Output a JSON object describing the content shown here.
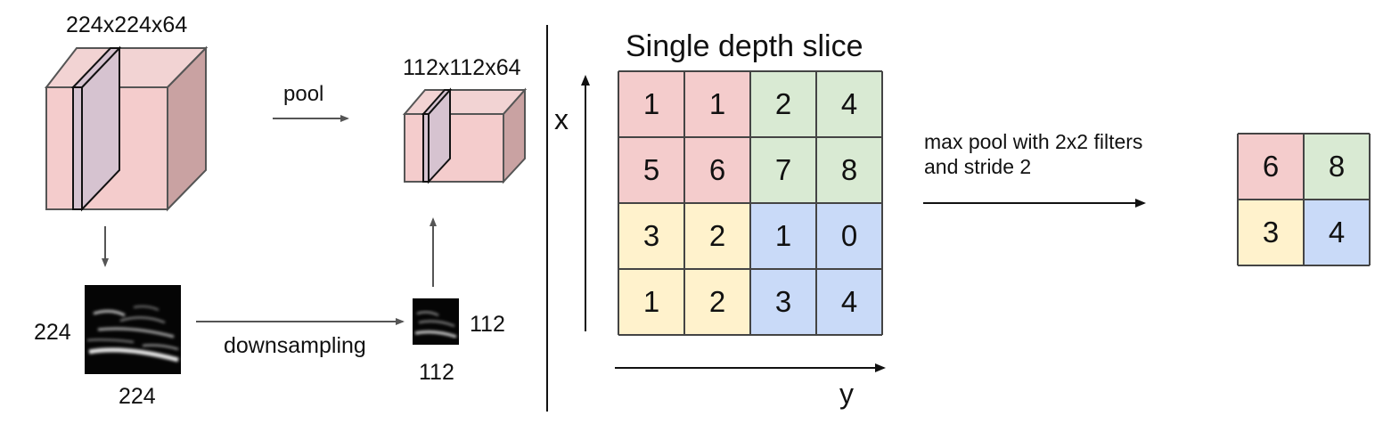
{
  "left_panel": {
    "input_volume_label": "224x224x64",
    "pooled_volume_label": "112x112x64",
    "pool_label": "pool",
    "downsampling_label": "downsampling",
    "input_height_label": "224",
    "input_width_label": "224",
    "output_height_label": "112",
    "output_width_label": "112"
  },
  "right_panel": {
    "title": "Single depth slice",
    "x_axis_label": "x",
    "y_axis_label": "y",
    "operation_line1": "max pool with 2x2 filters",
    "operation_line2": "and stride 2",
    "input_grid": [
      [
        1,
        1,
        2,
        4
      ],
      [
        5,
        6,
        7,
        8
      ],
      [
        3,
        2,
        1,
        0
      ],
      [
        1,
        2,
        3,
        4
      ]
    ],
    "output_grid": [
      [
        6,
        8
      ],
      [
        3,
        4
      ]
    ],
    "quadrant_colors": {
      "top_left": "#f4cccc",
      "top_right": "#d9ead3",
      "bottom_left": "#fff2cc",
      "bottom_right": "#c9daf8"
    }
  },
  "volume_colors": {
    "front": "#f4cccc",
    "top": "#f2d6d6",
    "side": "#c9a2a2",
    "slice": "#d8c4d2"
  }
}
